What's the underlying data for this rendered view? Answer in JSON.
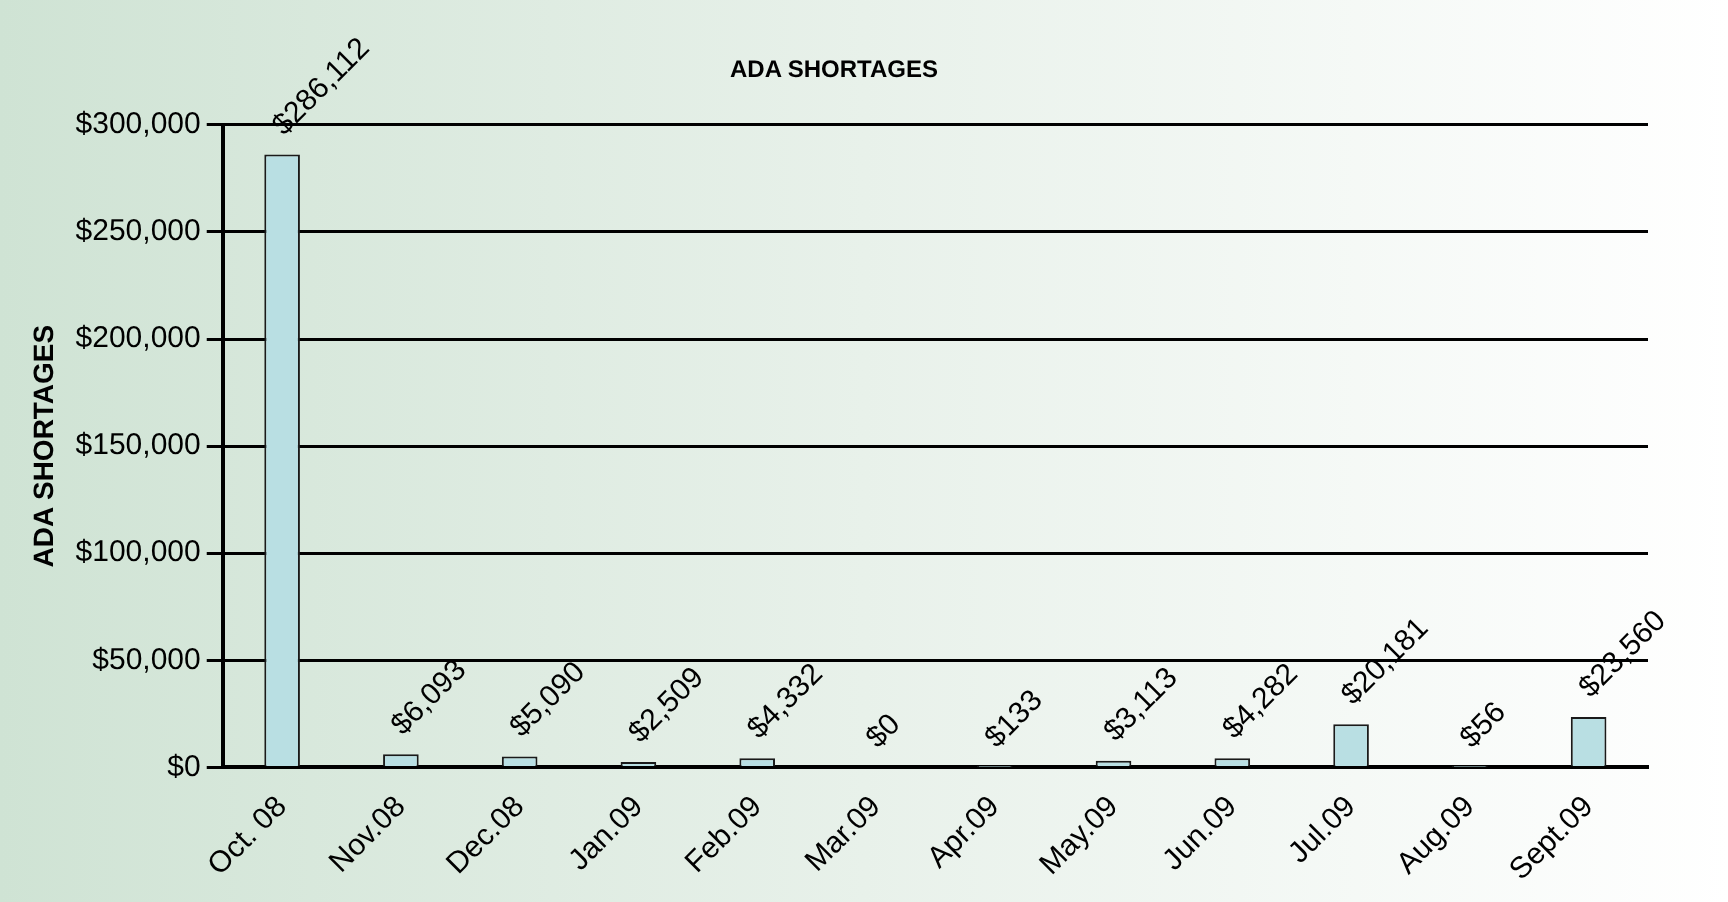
{
  "chart_data": {
    "type": "bar",
    "title": "ADA SHORTAGES",
    "ylabel": "ADA SHORTAGES",
    "categories": [
      "Oct. 08",
      "Nov.08",
      "Dec.08",
      "Jan.09",
      "Feb.09",
      "Mar.09",
      "Apr.09",
      "May.09",
      "Jun.09",
      "Jul.09",
      "Aug.09",
      "Sept.09"
    ],
    "values": [
      286112,
      6093,
      5090,
      2509,
      4332,
      0,
      133,
      3113,
      4282,
      20181,
      56,
      23560
    ],
    "value_labels": [
      "$286,112",
      "$6,093",
      "$5,090",
      "$2,509",
      "$4,332",
      "$0",
      "$133",
      "$3,113",
      "$4,282",
      "$20,181",
      "$56",
      "$23,560"
    ],
    "color": "#b9dfe3",
    "ylim": [
      0,
      300000
    ],
    "yticks": [
      {
        "value": 0,
        "label": "$0"
      },
      {
        "value": 50000,
        "label": "$50,000"
      },
      {
        "value": 100000,
        "label": "$100,000"
      },
      {
        "value": 150000,
        "label": "$150,000"
      },
      {
        "value": 200000,
        "label": "$200,000"
      },
      {
        "value": 250000,
        "label": "$250,000"
      },
      {
        "value": 300000,
        "label": "$300,000"
      }
    ],
    "grid": "y",
    "legend": false
  }
}
